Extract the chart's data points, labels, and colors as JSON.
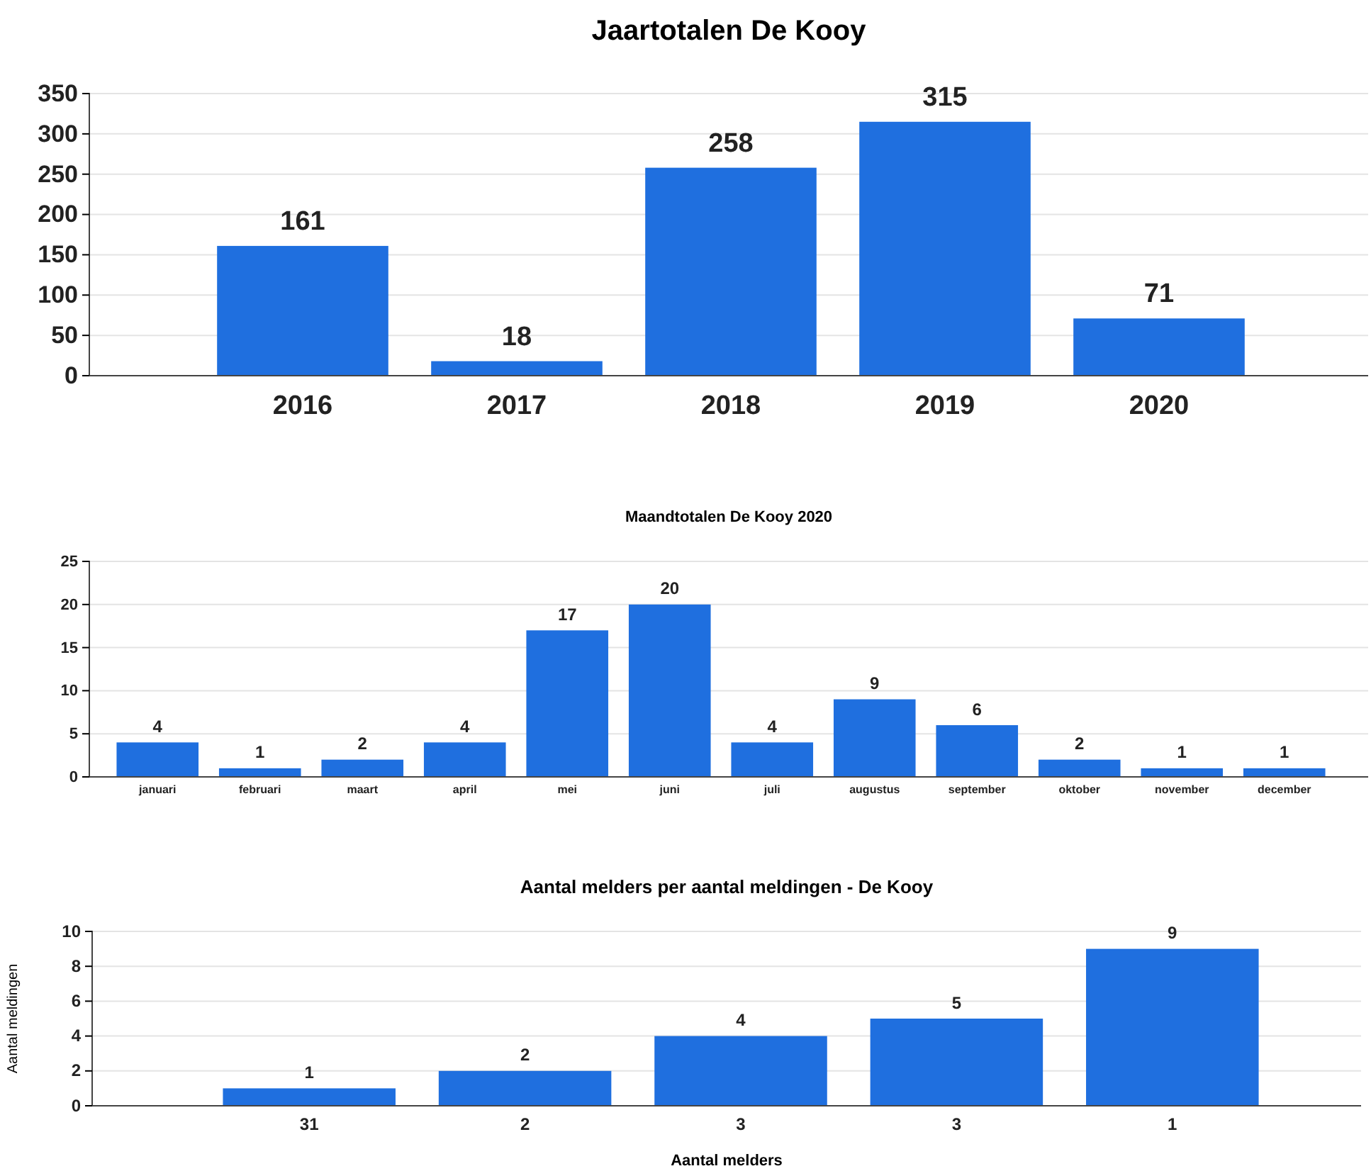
{
  "chart_data": [
    {
      "type": "bar",
      "title": "Jaartotalen De Kooy",
      "categories": [
        "2016",
        "2017",
        "2018",
        "2019",
        "2020"
      ],
      "values": [
        161,
        18,
        258,
        315,
        71
      ],
      "color": "#1f6fdf",
      "ylim": [
        0,
        350
      ],
      "yticks": [
        0,
        50,
        100,
        150,
        200,
        250,
        300,
        350
      ],
      "grid": "y",
      "data_labels": true
    },
    {
      "type": "bar",
      "title": "Maandtotalen De Kooy 2020",
      "categories": [
        "januari",
        "februari",
        "maart",
        "april",
        "mei",
        "juni",
        "juli",
        "augustus",
        "september",
        "oktober",
        "november",
        "december"
      ],
      "values": [
        4,
        1,
        2,
        4,
        17,
        20,
        4,
        9,
        6,
        2,
        1,
        1
      ],
      "color": "#1f6fdf",
      "ylim": [
        0,
        25
      ],
      "yticks": [
        0,
        5,
        10,
        15,
        20,
        25
      ],
      "grid": "y",
      "data_labels": true
    },
    {
      "type": "bar",
      "title": "Aantal melders per aantal meldingen - De Kooy",
      "xlabel": "Aantal melders",
      "ylabel": "Aantal meldingen",
      "categories": [
        "31",
        "2",
        "3",
        "3",
        "1"
      ],
      "values": [
        1,
        2,
        4,
        5,
        9
      ],
      "color": "#1f6fdf",
      "ylim": [
        0,
        10
      ],
      "yticks": [
        0,
        2,
        4,
        6,
        8,
        10
      ],
      "grid": "y",
      "data_labels": true
    }
  ]
}
